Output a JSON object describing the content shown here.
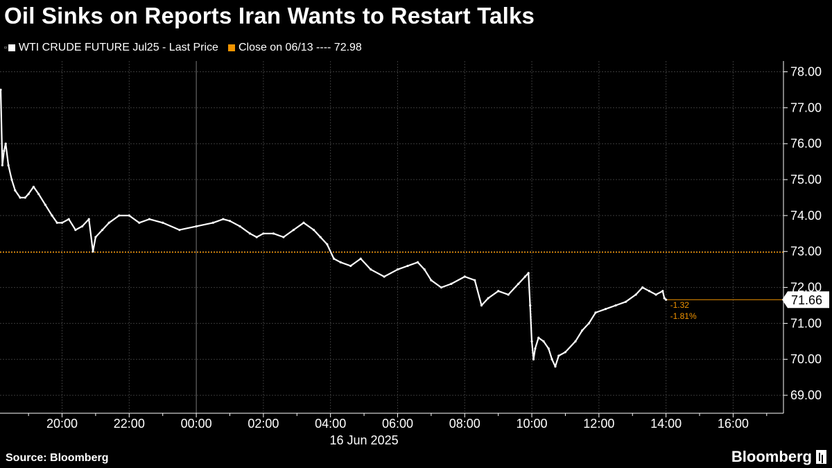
{
  "title": "Oil Sinks on Reports Iran Wants to Restart Talks",
  "legend": {
    "series_label": "WTI CRUDE FUTURE Jul25 - Last Price",
    "reference_label": "Close on 06/13 ---- 72.98"
  },
  "colors": {
    "background": "#000000",
    "series": "#ffffff",
    "reference": "#f29400",
    "grid": "#3a3a3a"
  },
  "source": "Source: Bloomberg",
  "brand": "Bloomberg",
  "chart_data": {
    "type": "line",
    "xlabel": "16 Jun 2025",
    "ylabel": "",
    "x_ticks": [
      "20:00",
      "22:00",
      "00:00",
      "02:00",
      "04:00",
      "06:00",
      "08:00",
      "10:00",
      "12:00",
      "14:00",
      "16:00"
    ],
    "x_tick_hours": [
      20,
      22,
      24,
      26,
      28,
      30,
      32,
      34,
      36,
      38,
      40
    ],
    "xlim_hours": [
      18.15,
      41.5
    ],
    "y_ticks": [
      "78.00",
      "77.00",
      "76.00",
      "75.00",
      "74.00",
      "73.00",
      "72.00",
      "71.00",
      "70.00",
      "69.00"
    ],
    "ylim": [
      68.5,
      78.3
    ],
    "grid": true,
    "legend_position": "top-left",
    "series": [
      {
        "name": "WTI CRUDE FUTURE Jul25 - Last Price",
        "x_hours": [
          18.17,
          18.22,
          18.27,
          18.32,
          18.4,
          18.5,
          18.6,
          18.75,
          18.9,
          19.0,
          19.15,
          19.3,
          19.5,
          19.7,
          19.85,
          20.0,
          20.2,
          20.4,
          20.6,
          20.8,
          20.92,
          21.0,
          21.2,
          21.4,
          21.7,
          22.0,
          22.3,
          22.6,
          23.0,
          23.5,
          24.0,
          24.5,
          24.8,
          25.0,
          25.3,
          25.6,
          25.8,
          26.0,
          26.3,
          26.6,
          26.9,
          27.2,
          27.5,
          27.7,
          27.9,
          28.1,
          28.3,
          28.6,
          28.9,
          29.2,
          29.6,
          30.0,
          30.3,
          30.6,
          30.8,
          31.0,
          31.3,
          31.6,
          32.0,
          32.3,
          32.5,
          32.7,
          33.0,
          33.3,
          33.6,
          33.8,
          33.9,
          33.95,
          34.0,
          34.05,
          34.1,
          34.2,
          34.35,
          34.5,
          34.6,
          34.7,
          34.8,
          35.0,
          35.3,
          35.5,
          35.7,
          35.9,
          36.2,
          36.5,
          36.8,
          37.1,
          37.3,
          37.5,
          37.7,
          37.9,
          37.95,
          38.0
        ],
        "values": [
          77.5,
          75.4,
          75.8,
          76.0,
          75.4,
          75.0,
          74.7,
          74.5,
          74.5,
          74.6,
          74.8,
          74.6,
          74.3,
          74.0,
          73.8,
          73.8,
          73.9,
          73.6,
          73.7,
          73.9,
          73.0,
          73.4,
          73.6,
          73.8,
          74.0,
          74.0,
          73.8,
          73.9,
          73.8,
          73.6,
          73.7,
          73.8,
          73.9,
          73.85,
          73.7,
          73.5,
          73.4,
          73.5,
          73.5,
          73.4,
          73.6,
          73.8,
          73.6,
          73.4,
          73.2,
          72.8,
          72.7,
          72.6,
          72.8,
          72.5,
          72.3,
          72.5,
          72.6,
          72.7,
          72.5,
          72.2,
          72.0,
          72.1,
          72.3,
          72.2,
          71.5,
          71.7,
          71.9,
          71.8,
          72.1,
          72.3,
          72.4,
          71.5,
          70.5,
          70.0,
          70.3,
          70.6,
          70.5,
          70.3,
          70.0,
          69.8,
          70.1,
          70.2,
          70.5,
          70.8,
          71.0,
          71.3,
          71.4,
          71.5,
          71.6,
          71.8,
          72.0,
          71.9,
          71.8,
          71.9,
          71.7,
          71.66
        ]
      }
    ],
    "reference_line": {
      "label": "Close on 06/13",
      "value": 72.98
    },
    "last_value_label": "71.66",
    "annotations": [
      "-1.32",
      "-1.81%"
    ]
  }
}
